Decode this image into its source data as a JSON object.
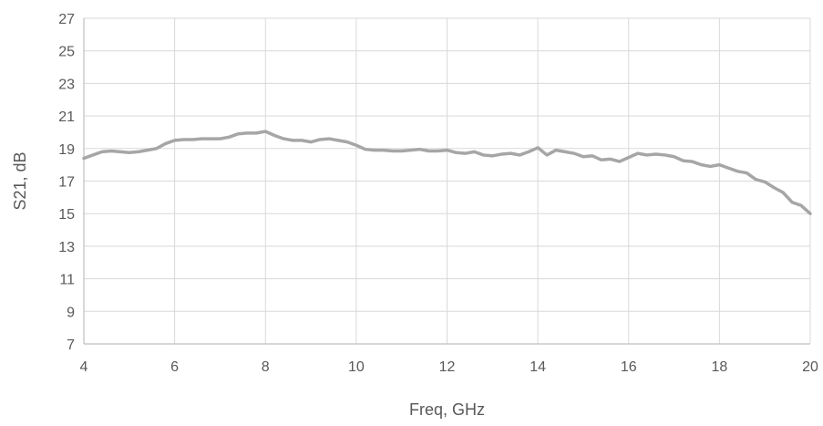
{
  "chart_data": {
    "type": "line",
    "title": "",
    "xlabel": "Freq, GHz",
    "ylabel": "S21, dB",
    "xlim": [
      4,
      20
    ],
    "ylim": [
      7,
      27
    ],
    "x_ticks": [
      4,
      6,
      8,
      10,
      12,
      14,
      16,
      18,
      20
    ],
    "y_ticks": [
      7,
      9,
      11,
      13,
      15,
      17,
      19,
      21,
      23,
      25,
      27
    ],
    "grid": true,
    "legend": "none",
    "series_color": "#a6a6a6",
    "grid_color": "#d9d9d9",
    "axis_color": "#bfbfbf",
    "series": [
      {
        "x": [
          4.0,
          4.2,
          4.4,
          4.6,
          4.8,
          5.0,
          5.2,
          5.4,
          5.6,
          5.8,
          6.0,
          6.2,
          6.4,
          6.6,
          6.8,
          7.0,
          7.2,
          7.4,
          7.6,
          7.8,
          8.0,
          8.2,
          8.4,
          8.6,
          8.8,
          9.0,
          9.2,
          9.4,
          9.6,
          9.8,
          10.0,
          10.2,
          10.4,
          10.6,
          10.8,
          11.0,
          11.2,
          11.4,
          11.6,
          11.8,
          12.0,
          12.2,
          12.4,
          12.6,
          12.8,
          13.0,
          13.2,
          13.4,
          13.6,
          13.8,
          14.0,
          14.2,
          14.4,
          14.6,
          14.8,
          15.0,
          15.2,
          15.4,
          15.6,
          15.8,
          16.0,
          16.2,
          16.4,
          16.6,
          16.8,
          17.0,
          17.2,
          17.4,
          17.6,
          17.8,
          18.0,
          18.2,
          18.4,
          18.6,
          18.8,
          19.0,
          19.2,
          19.4,
          19.6,
          19.8,
          20.0
        ],
        "values": [
          18.4,
          18.6,
          18.8,
          18.85,
          18.8,
          18.75,
          18.8,
          18.9,
          19.0,
          19.3,
          19.5,
          19.55,
          19.55,
          19.6,
          19.6,
          19.6,
          19.7,
          19.9,
          19.95,
          19.95,
          20.05,
          19.8,
          19.6,
          19.5,
          19.5,
          19.4,
          19.55,
          19.6,
          19.5,
          19.4,
          19.2,
          18.95,
          18.9,
          18.9,
          18.85,
          18.85,
          18.9,
          18.95,
          18.85,
          18.85,
          18.9,
          18.75,
          18.7,
          18.8,
          18.6,
          18.55,
          18.65,
          18.7,
          18.6,
          18.8,
          19.05,
          18.6,
          18.9,
          18.8,
          18.7,
          18.5,
          18.55,
          18.3,
          18.35,
          18.2,
          18.45,
          18.7,
          18.6,
          18.65,
          18.6,
          18.5,
          18.25,
          18.2,
          18.0,
          17.9,
          18.0,
          17.8,
          17.6,
          17.5,
          17.1,
          16.95,
          16.6,
          16.3,
          15.7,
          15.5,
          15.0
        ]
      }
    ]
  }
}
